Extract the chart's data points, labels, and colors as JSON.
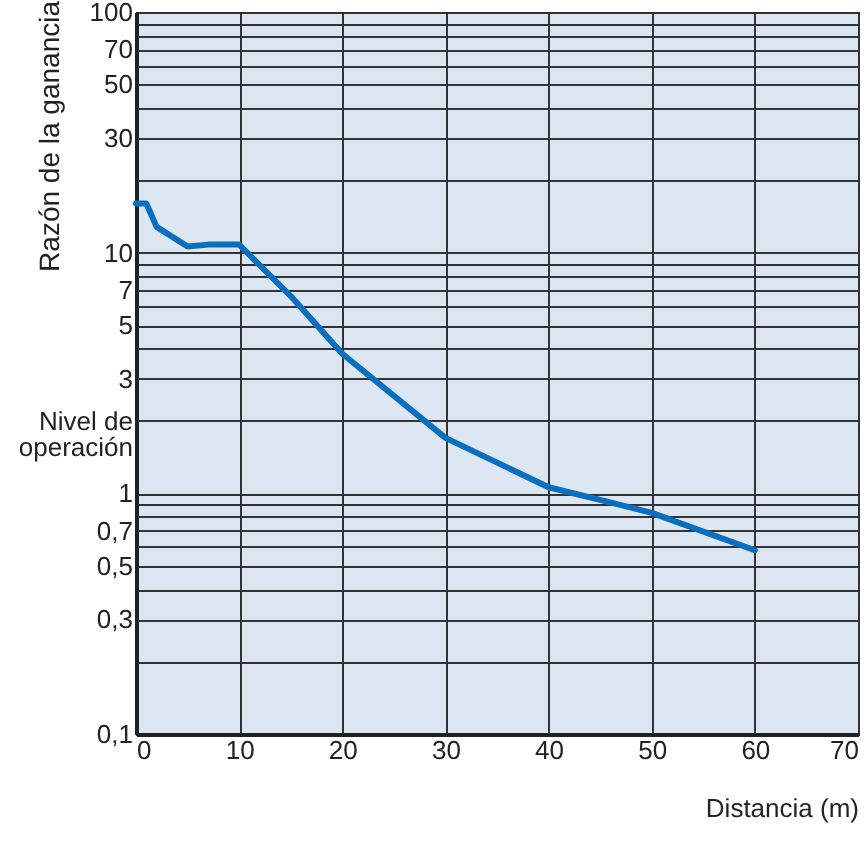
{
  "chart_data": {
    "type": "line",
    "xlabel": "Distancia (m)",
    "ylabel": "Razón de la ganancia",
    "x": [
      0,
      1,
      2,
      5,
      7,
      10,
      15,
      20,
      30,
      40,
      45,
      50,
      60
    ],
    "series": [
      {
        "color": "#0a6fbf",
        "values": [
          16,
          16,
          12.8,
          10.6,
          10.8,
          10.8,
          6.6,
          3.8,
          1.7,
          1.06,
          0.94,
          0.83,
          0.58
        ]
      }
    ],
    "xlim": [
      0,
      70
    ],
    "xticks": [
      0,
      10,
      20,
      30,
      40,
      50,
      60,
      70
    ],
    "ylim": [
      0.1,
      100
    ],
    "log": true,
    "yticks": [
      {
        "value": 0.1,
        "label": "0,1"
      },
      {
        "value": 0.2,
        "label": null
      },
      {
        "value": 0.3,
        "label": "0,3"
      },
      {
        "value": 0.4,
        "label": null
      },
      {
        "value": 0.5,
        "label": "0,5"
      },
      {
        "value": 0.6,
        "label": null
      },
      {
        "value": 0.7,
        "label": "0,7"
      },
      {
        "value": 0.8,
        "label": null
      },
      {
        "value": 0.9,
        "label": null
      },
      {
        "value": 1,
        "label": "1"
      },
      {
        "value": 2,
        "label": "Nivel de\noperación"
      },
      {
        "value": 3,
        "label": "3"
      },
      {
        "value": 4,
        "label": null
      },
      {
        "value": 5,
        "label": "5"
      },
      {
        "value": 6,
        "label": null
      },
      {
        "value": 7,
        "label": "7"
      },
      {
        "value": 8,
        "label": null
      },
      {
        "value": 9,
        "label": null
      },
      {
        "value": 10,
        "label": "10"
      },
      {
        "value": 20,
        "label": null
      },
      {
        "value": 30,
        "label": "30"
      },
      {
        "value": 40,
        "label": null
      },
      {
        "value": 50,
        "label": "50"
      },
      {
        "value": 60,
        "label": null
      },
      {
        "value": 70,
        "label": "70"
      },
      {
        "value": 80,
        "label": null
      },
      {
        "value": 90,
        "label": null
      },
      {
        "value": 100,
        "label": "100"
      }
    ],
    "grid": true,
    "marker": "none",
    "line_style": "solid"
  }
}
